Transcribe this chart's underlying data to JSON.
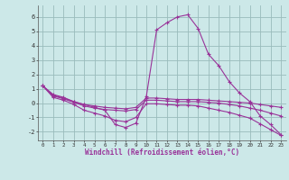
{
  "xlabel": "Windchill (Refroidissement éolien,°C)",
  "background_color": "#cce8e8",
  "grid_color": "#99bbbb",
  "line_color": "#993399",
  "xlim": [
    -0.5,
    23.5
  ],
  "ylim": [
    -2.6,
    6.8
  ],
  "xticks": [
    0,
    1,
    2,
    3,
    4,
    5,
    6,
    7,
    8,
    9,
    10,
    11,
    12,
    13,
    14,
    15,
    16,
    17,
    18,
    19,
    20,
    21,
    22,
    23
  ],
  "yticks": [
    -2,
    -1,
    0,
    1,
    2,
    3,
    4,
    5,
    6
  ],
  "series": [
    {
      "x": [
        0,
        1,
        2,
        3,
        4,
        5,
        6,
        7,
        8,
        9,
        10,
        11,
        12,
        13,
        14,
        15,
        16,
        17,
        18,
        19,
        20,
        21,
        22,
        23
      ],
      "y": [
        1.2,
        0.6,
        0.4,
        0.1,
        -0.1,
        -0.3,
        -0.5,
        -1.5,
        -1.7,
        -1.4,
        0.45,
        5.1,
        5.6,
        6.0,
        6.15,
        5.2,
        3.4,
        2.6,
        1.5,
        0.7,
        0.1,
        -0.9,
        -1.5,
        -2.2
      ]
    },
    {
      "x": [
        0,
        1,
        2,
        3,
        4,
        5,
        6,
        7,
        8,
        9,
        10,
        11,
        12,
        13,
        14,
        15,
        16,
        17,
        18,
        19,
        20,
        21,
        22,
        23
      ],
      "y": [
        1.2,
        0.55,
        0.35,
        0.1,
        -0.1,
        -0.2,
        -0.3,
        -0.35,
        -0.4,
        -0.3,
        0.35,
        0.35,
        0.3,
        0.25,
        0.25,
        0.25,
        0.2,
        0.15,
        0.1,
        0.05,
        0.0,
        -0.1,
        -0.2,
        -0.3
      ]
    },
    {
      "x": [
        0,
        1,
        2,
        3,
        4,
        5,
        6,
        7,
        8,
        9,
        10,
        11,
        12,
        13,
        14,
        15,
        16,
        17,
        18,
        19,
        20,
        21,
        22,
        23
      ],
      "y": [
        1.2,
        0.5,
        0.3,
        0.05,
        -0.2,
        -0.35,
        -0.45,
        -0.5,
        -0.55,
        -0.45,
        0.2,
        0.2,
        0.15,
        0.1,
        0.1,
        0.1,
        0.05,
        0.0,
        -0.1,
        -0.2,
        -0.35,
        -0.5,
        -0.7,
        -0.9
      ]
    },
    {
      "x": [
        0,
        1,
        2,
        3,
        4,
        5,
        6,
        7,
        8,
        9,
        10,
        11,
        12,
        13,
        14,
        15,
        16,
        17,
        18,
        19,
        20,
        21,
        22,
        23
      ],
      "y": [
        1.2,
        0.4,
        0.2,
        -0.1,
        -0.5,
        -0.7,
        -0.9,
        -1.2,
        -1.3,
        -1.0,
        -0.05,
        -0.05,
        -0.1,
        -0.15,
        -0.15,
        -0.2,
        -0.35,
        -0.5,
        -0.65,
        -0.85,
        -1.05,
        -1.45,
        -1.85,
        -2.25
      ]
    }
  ]
}
